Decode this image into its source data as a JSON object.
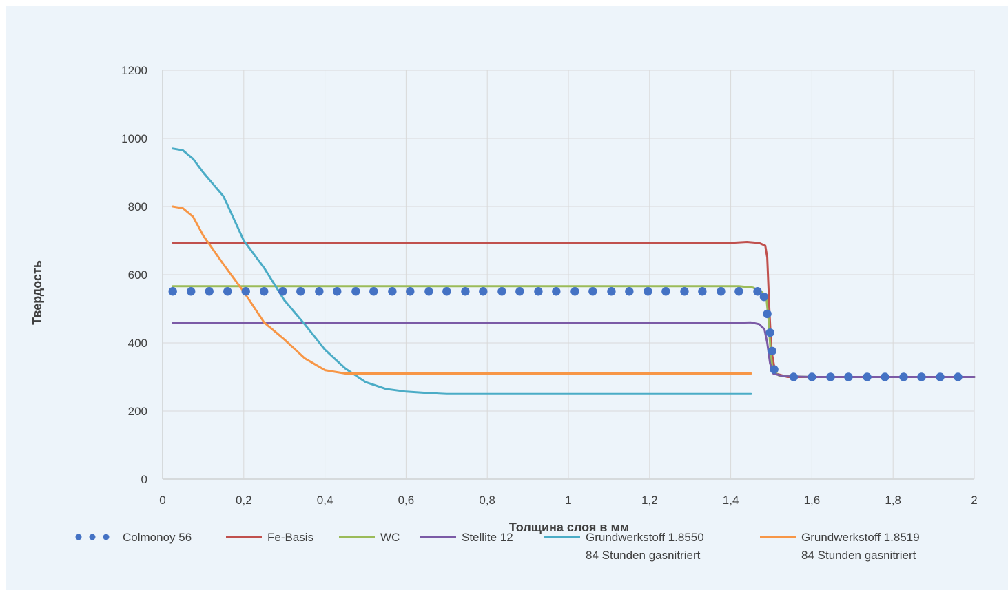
{
  "chart_data": {
    "type": "line",
    "title": "",
    "xlabel": "Толщина слоя в мм",
    "ylabel": "Твердость",
    "xlim": [
      0,
      2
    ],
    "ylim": [
      0,
      1200
    ],
    "x_ticks": [
      "0",
      "0,2",
      "0,4",
      "0,6",
      "0,8",
      "1",
      "1,2",
      "1,4",
      "1,6",
      "1,8",
      "2"
    ],
    "y_ticks": [
      "0",
      "200",
      "400",
      "600",
      "800",
      "1000",
      "1200"
    ],
    "grid": true,
    "legend_position": "bottom",
    "series": [
      {
        "name": "Colmonoy 56",
        "color": "#4472c4",
        "style": "dots",
        "points": [
          [
            0.025,
            551
          ],
          [
            0.07,
            551
          ],
          [
            0.115,
            551
          ],
          [
            0.16,
            551
          ],
          [
            0.205,
            551
          ],
          [
            0.25,
            551
          ],
          [
            0.296,
            551
          ],
          [
            0.34,
            551
          ],
          [
            0.386,
            551
          ],
          [
            0.43,
            551
          ],
          [
            0.476,
            551
          ],
          [
            0.52,
            551
          ],
          [
            0.566,
            551
          ],
          [
            0.61,
            551
          ],
          [
            0.656,
            551
          ],
          [
            0.7,
            551
          ],
          [
            0.746,
            551
          ],
          [
            0.79,
            551
          ],
          [
            0.836,
            551
          ],
          [
            0.88,
            551
          ],
          [
            0.926,
            551
          ],
          [
            0.97,
            551
          ],
          [
            1.016,
            551
          ],
          [
            1.06,
            551
          ],
          [
            1.106,
            551
          ],
          [
            1.15,
            551
          ],
          [
            1.196,
            551
          ],
          [
            1.24,
            551
          ],
          [
            1.286,
            551
          ],
          [
            1.33,
            551
          ],
          [
            1.376,
            551
          ],
          [
            1.42,
            551
          ],
          [
            1.466,
            551
          ],
          [
            1.482,
            535
          ],
          [
            1.49,
            485
          ],
          [
            1.497,
            430
          ],
          [
            1.502,
            376
          ],
          [
            1.507,
            322
          ],
          [
            1.555,
            300
          ],
          [
            1.6,
            300
          ],
          [
            1.646,
            300
          ],
          [
            1.69,
            300
          ],
          [
            1.736,
            300
          ],
          [
            1.78,
            300
          ],
          [
            1.826,
            300
          ],
          [
            1.87,
            300
          ],
          [
            1.916,
            300
          ],
          [
            1.96,
            300
          ]
        ]
      },
      {
        "name": "Fe-Basis",
        "color": "#c0504d",
        "style": "line",
        "points": [
          [
            0.025,
            694
          ],
          [
            1.41,
            694
          ],
          [
            1.44,
            696
          ],
          [
            1.47,
            693
          ],
          [
            1.485,
            685
          ],
          [
            1.49,
            650
          ],
          [
            1.495,
            500
          ],
          [
            1.5,
            380
          ],
          [
            1.51,
            310
          ],
          [
            1.54,
            300
          ],
          [
            2,
            300
          ]
        ]
      },
      {
        "name": "WC",
        "color": "#9bbb59",
        "style": "line",
        "points": [
          [
            0.025,
            566
          ],
          [
            1.42,
            566
          ],
          [
            1.455,
            562
          ],
          [
            1.478,
            548
          ],
          [
            1.488,
            530
          ],
          [
            1.493,
            470
          ],
          [
            1.498,
            380
          ],
          [
            1.503,
            320
          ],
          [
            1.52,
            303
          ],
          [
            1.6,
            300
          ],
          [
            2,
            300
          ]
        ]
      },
      {
        "name": "Stellite 12",
        "color": "#7b5aa6",
        "style": "line",
        "points": [
          [
            0.025,
            459
          ],
          [
            1.42,
            459
          ],
          [
            1.45,
            460
          ],
          [
            1.47,
            455
          ],
          [
            1.483,
            440
          ],
          [
            1.49,
            400
          ],
          [
            1.497,
            340
          ],
          [
            1.505,
            310
          ],
          [
            1.53,
            302
          ],
          [
            1.6,
            300
          ],
          [
            2,
            300
          ]
        ]
      },
      {
        "name": "Grundwerkstoff 1.8550\n84 Stunden gasnitriert",
        "color": "#4bacc6",
        "style": "line",
        "points": [
          [
            0.025,
            970
          ],
          [
            0.05,
            965
          ],
          [
            0.075,
            940
          ],
          [
            0.1,
            900
          ],
          [
            0.15,
            830
          ],
          [
            0.2,
            700
          ],
          [
            0.25,
            620
          ],
          [
            0.3,
            525
          ],
          [
            0.35,
            455
          ],
          [
            0.4,
            380
          ],
          [
            0.45,
            325
          ],
          [
            0.5,
            285
          ],
          [
            0.55,
            265
          ],
          [
            0.6,
            257
          ],
          [
            0.65,
            253
          ],
          [
            0.7,
            250
          ],
          [
            0.8,
            250
          ],
          [
            1.0,
            250
          ],
          [
            1.45,
            250
          ]
        ]
      },
      {
        "name": "Grundwerkstoff 1.8519\n84 Stunden gasnitriert",
        "color": "#f79646",
        "style": "line",
        "points": [
          [
            0.025,
            800
          ],
          [
            0.05,
            795
          ],
          [
            0.075,
            770
          ],
          [
            0.1,
            715
          ],
          [
            0.15,
            630
          ],
          [
            0.2,
            550
          ],
          [
            0.25,
            460
          ],
          [
            0.3,
            410
          ],
          [
            0.35,
            355
          ],
          [
            0.4,
            320
          ],
          [
            0.45,
            310
          ],
          [
            0.5,
            310
          ],
          [
            1.0,
            310
          ],
          [
            1.45,
            310
          ]
        ]
      }
    ]
  }
}
